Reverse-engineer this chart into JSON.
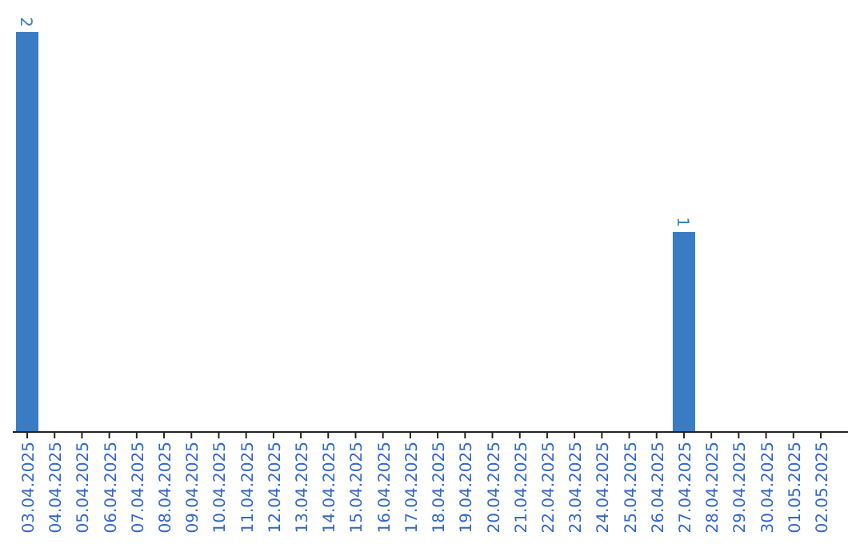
{
  "chart_data": {
    "type": "bar",
    "categories": [
      "03.04.2025",
      "04.04.2025",
      "05.04.2025",
      "06.04.2025",
      "07.04.2025",
      "08.04.2025",
      "09.04.2025",
      "10.04.2025",
      "11.04.2025",
      "12.04.2025",
      "13.04.2025",
      "14.04.2025",
      "15.04.2025",
      "16.04.2025",
      "17.04.2025",
      "18.04.2025",
      "19.04.2025",
      "20.04.2025",
      "21.04.2025",
      "22.04.2025",
      "23.04.2025",
      "24.04.2025",
      "25.04.2025",
      "26.04.2025",
      "27.04.2025",
      "28.04.2025",
      "29.04.2025",
      "30.04.2025",
      "01.05.2025",
      "02.05.2025"
    ],
    "values": [
      2,
      0,
      0,
      0,
      0,
      0,
      0,
      0,
      0,
      0,
      0,
      0,
      0,
      0,
      0,
      0,
      0,
      0,
      0,
      0,
      0,
      0,
      0,
      0,
      1,
      0,
      0,
      0,
      0,
      0
    ],
    "value_labels": [
      "2",
      null,
      null,
      null,
      null,
      null,
      null,
      null,
      null,
      null,
      null,
      null,
      null,
      null,
      null,
      null,
      null,
      null,
      null,
      null,
      null,
      null,
      null,
      null,
      "1",
      null,
      null,
      null,
      null,
      null
    ],
    "color": "#3a7cc4",
    "tick_labels": "x"
  }
}
